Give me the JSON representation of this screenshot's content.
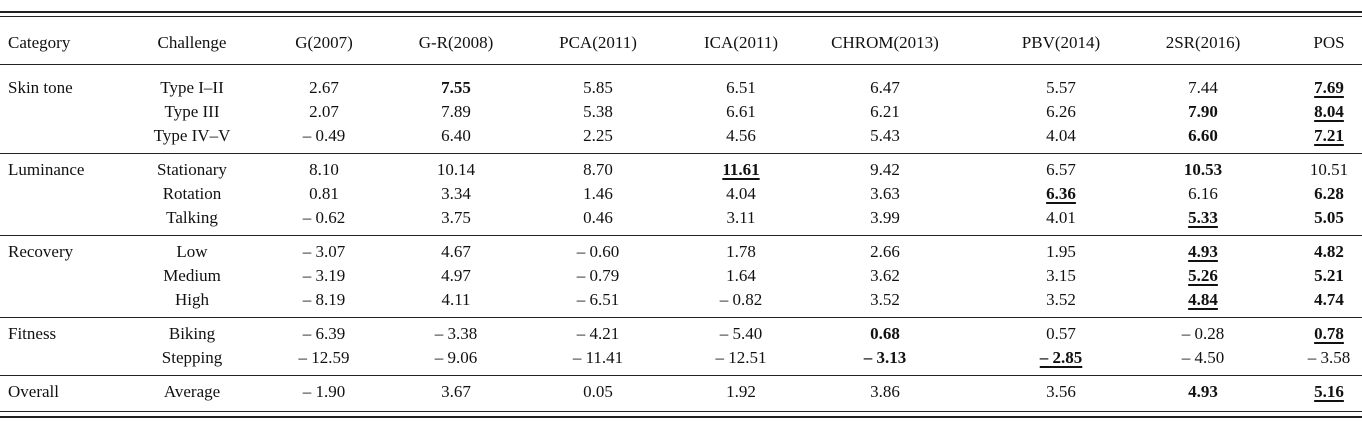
{
  "columns": [
    "Category",
    "Challenge",
    "G(2007)",
    "G-R(2008)",
    "PCA(2011)",
    "ICA(2011)",
    "CHROM(2013)",
    "PBV(2014)",
    "2SR(2016)",
    "POS"
  ],
  "groups": [
    {
      "category": "Skin tone",
      "rows": [
        {
          "challenge": "Type I–II",
          "values": [
            {
              "v": "2.67"
            },
            {
              "v": "7.55",
              "b": true
            },
            {
              "v": "5.85"
            },
            {
              "v": "6.51"
            },
            {
              "v": "6.47"
            },
            {
              "v": "5.57"
            },
            {
              "v": "7.44"
            },
            {
              "v": "7.69",
              "b": true,
              "u": true
            }
          ]
        },
        {
          "challenge": "Type III",
          "values": [
            {
              "v": "2.07"
            },
            {
              "v": "7.89"
            },
            {
              "v": "5.38"
            },
            {
              "v": "6.61"
            },
            {
              "v": "6.21"
            },
            {
              "v": "6.26"
            },
            {
              "v": "7.90",
              "b": true
            },
            {
              "v": "8.04",
              "b": true,
              "u": true
            }
          ]
        },
        {
          "challenge": "Type IV–V",
          "values": [
            {
              "v": "– 0.49"
            },
            {
              "v": "6.40"
            },
            {
              "v": "2.25"
            },
            {
              "v": "4.56"
            },
            {
              "v": "5.43"
            },
            {
              "v": "4.04"
            },
            {
              "v": "6.60",
              "b": true
            },
            {
              "v": "7.21",
              "b": true,
              "u": true
            }
          ]
        }
      ]
    },
    {
      "category": "Luminance",
      "rows": [
        {
          "challenge": "Stationary",
          "values": [
            {
              "v": "8.10"
            },
            {
              "v": "10.14"
            },
            {
              "v": "8.70"
            },
            {
              "v": "11.61",
              "b": true,
              "u": true
            },
            {
              "v": "9.42"
            },
            {
              "v": "6.57"
            },
            {
              "v": "10.53",
              "b": true
            },
            {
              "v": "10.51"
            }
          ]
        },
        {
          "challenge": "Rotation",
          "values": [
            {
              "v": "0.81"
            },
            {
              "v": "3.34"
            },
            {
              "v": "1.46"
            },
            {
              "v": "4.04"
            },
            {
              "v": "3.63"
            },
            {
              "v": "6.36",
              "b": true,
              "u": true
            },
            {
              "v": "6.16"
            },
            {
              "v": "6.28",
              "b": true
            }
          ]
        },
        {
          "challenge": "Talking",
          "values": [
            {
              "v": "– 0.62"
            },
            {
              "v": "3.75"
            },
            {
              "v": "0.46"
            },
            {
              "v": "3.11"
            },
            {
              "v": "3.99"
            },
            {
              "v": "4.01"
            },
            {
              "v": "5.33",
              "b": true,
              "u": true
            },
            {
              "v": "5.05",
              "b": true
            }
          ]
        }
      ]
    },
    {
      "category": "Recovery",
      "rows": [
        {
          "challenge": "Low",
          "values": [
            {
              "v": "– 3.07"
            },
            {
              "v": "4.67"
            },
            {
              "v": "– 0.60"
            },
            {
              "v": "1.78"
            },
            {
              "v": "2.66"
            },
            {
              "v": "1.95"
            },
            {
              "v": "4.93",
              "b": true,
              "u": true
            },
            {
              "v": "4.82",
              "b": true
            }
          ]
        },
        {
          "challenge": "Medium",
          "values": [
            {
              "v": "– 3.19"
            },
            {
              "v": "4.97"
            },
            {
              "v": "– 0.79"
            },
            {
              "v": "1.64"
            },
            {
              "v": "3.62"
            },
            {
              "v": "3.15"
            },
            {
              "v": "5.26",
              "b": true,
              "u": true
            },
            {
              "v": "5.21",
              "b": true
            }
          ]
        },
        {
          "challenge": "High",
          "values": [
            {
              "v": "– 8.19"
            },
            {
              "v": "4.11"
            },
            {
              "v": "– 6.51"
            },
            {
              "v": "– 0.82"
            },
            {
              "v": "3.52"
            },
            {
              "v": "3.52"
            },
            {
              "v": "4.84",
              "b": true,
              "u": true
            },
            {
              "v": "4.74",
              "b": true
            }
          ]
        }
      ]
    },
    {
      "category": "Fitness",
      "rows": [
        {
          "challenge": "Biking",
          "values": [
            {
              "v": "– 6.39"
            },
            {
              "v": "– 3.38"
            },
            {
              "v": "– 4.21"
            },
            {
              "v": "– 5.40"
            },
            {
              "v": "0.68",
              "b": true
            },
            {
              "v": "0.57"
            },
            {
              "v": "– 0.28"
            },
            {
              "v": "0.78",
              "b": true,
              "u": true
            }
          ]
        },
        {
          "challenge": "Stepping",
          "values": [
            {
              "v": "– 12.59"
            },
            {
              "v": "– 9.06"
            },
            {
              "v": "– 11.41"
            },
            {
              "v": "– 12.51"
            },
            {
              "v": "– 3.13",
              "b": true
            },
            {
              "v": "– 2.85",
              "b": true,
              "u": true
            },
            {
              "v": "– 4.50"
            },
            {
              "v": "– 3.58"
            }
          ]
        }
      ]
    },
    {
      "category": "Overall",
      "rows": [
        {
          "challenge": "Average",
          "values": [
            {
              "v": "– 1.90"
            },
            {
              "v": "3.67"
            },
            {
              "v": "0.05"
            },
            {
              "v": "1.92"
            },
            {
              "v": "3.86"
            },
            {
              "v": "3.56"
            },
            {
              "v": "4.93",
              "b": true
            },
            {
              "v": "5.16",
              "b": true,
              "u": true
            }
          ]
        }
      ]
    }
  ]
}
